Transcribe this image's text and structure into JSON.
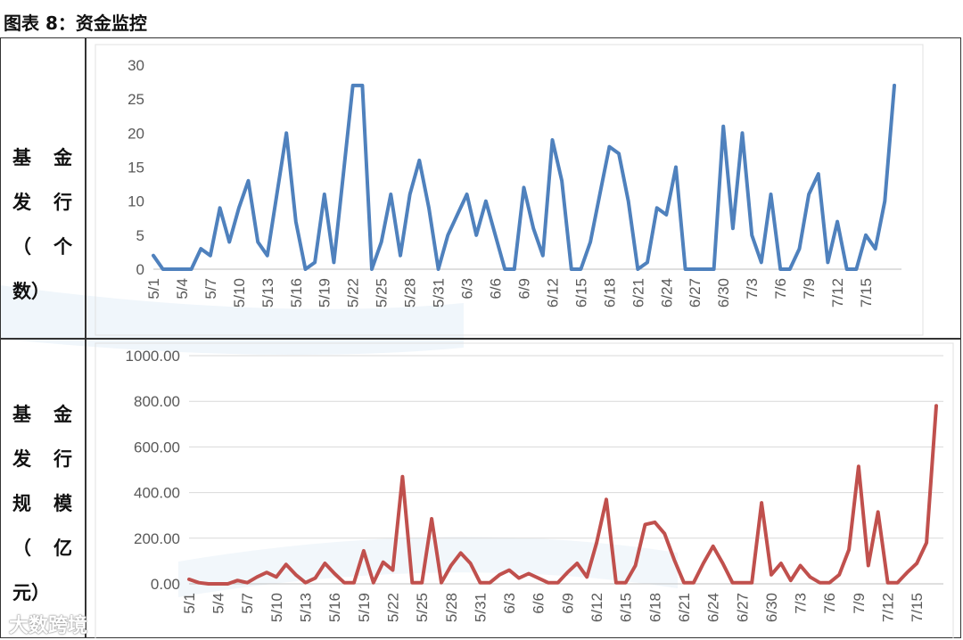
{
  "figure": {
    "title": "图表 8：资金监控",
    "watermark": "大数跨境"
  },
  "rows": [
    {
      "label_chars": [
        "基",
        "金",
        "发",
        "行",
        "（",
        "个",
        "数）"
      ]
    },
    {
      "label_chars": [
        "基",
        "金",
        "发",
        "行",
        "规",
        "模",
        "（",
        "亿",
        "元）"
      ]
    }
  ],
  "colors": {
    "series1": "#4F81BD",
    "series2": "#C0504D",
    "grid": "#D9D9D9",
    "axis": "#BFBFBF"
  },
  "chart_data": [
    {
      "type": "line",
      "title": "",
      "xlabel": "",
      "ylabel": "",
      "ylim": [
        0,
        30
      ],
      "yticks": [
        "0",
        "5",
        "10",
        "15",
        "20",
        "25",
        "30"
      ],
      "grid": false,
      "x_tick_labels": [
        "5/1",
        "5/4",
        "5/7",
        "5/10",
        "5/13",
        "5/16",
        "5/19",
        "5/22",
        "5/25",
        "5/28",
        "5/31",
        "6/3",
        "6/6",
        "6/9",
        "6/12",
        "6/15",
        "6/18",
        "6/21",
        "6/24",
        "6/27",
        "6/30",
        "7/3",
        "7/6",
        "7/9",
        "7/12",
        "7/15"
      ],
      "series": [
        {
          "values": [
            2,
            0,
            0,
            0,
            0,
            3,
            2,
            9,
            4,
            9,
            13,
            4,
            2,
            11,
            20,
            7,
            0,
            1,
            11,
            1,
            14,
            27,
            27,
            0,
            4,
            11,
            2,
            11,
            16,
            9,
            0,
            5,
            8,
            11,
            5,
            10,
            5,
            0,
            0,
            12,
            6,
            2,
            19,
            13,
            0,
            0,
            4,
            11,
            18,
            17,
            10,
            0,
            1,
            9,
            8,
            15,
            0,
            0,
            0,
            0,
            21,
            6,
            20,
            5,
            1,
            11,
            0,
            0,
            3,
            11,
            14,
            1,
            7,
            0,
            0,
            5,
            3,
            10,
            27
          ]
        }
      ]
    },
    {
      "type": "line",
      "title": "",
      "xlabel": "",
      "ylabel": "",
      "ylim": [
        0,
        1000
      ],
      "yticks": [
        "0.00",
        "200.00",
        "400.00",
        "600.00",
        "800.00",
        "1000.00"
      ],
      "grid": true,
      "x_tick_labels": [
        "5/1",
        "5/4",
        "5/7",
        "5/10",
        "5/13",
        "5/16",
        "5/19",
        "5/22",
        "5/25",
        "5/28",
        "5/31",
        "6/3",
        "6/6",
        "6/9",
        "6/12",
        "6/15",
        "6/18",
        "6/21",
        "6/24",
        "6/27",
        "6/30",
        "7/3",
        "7/6",
        "7/9",
        "7/12",
        "7/15"
      ],
      "series": [
        {
          "values": [
            20,
            5,
            0,
            0,
            0,
            15,
            5,
            30,
            50,
            30,
            85,
            40,
            5,
            25,
            90,
            45,
            5,
            5,
            145,
            5,
            95,
            60,
            470,
            5,
            5,
            285,
            5,
            80,
            135,
            90,
            5,
            5,
            40,
            60,
            25,
            45,
            25,
            5,
            5,
            50,
            90,
            30,
            180,
            370,
            5,
            5,
            80,
            260,
            270,
            220,
            105,
            5,
            5,
            90,
            165,
            90,
            5,
            5,
            5,
            355,
            40,
            90,
            15,
            80,
            30,
            5,
            5,
            40,
            150,
            515,
            80,
            315,
            5,
            5,
            50,
            90,
            180,
            780
          ]
        }
      ]
    }
  ]
}
